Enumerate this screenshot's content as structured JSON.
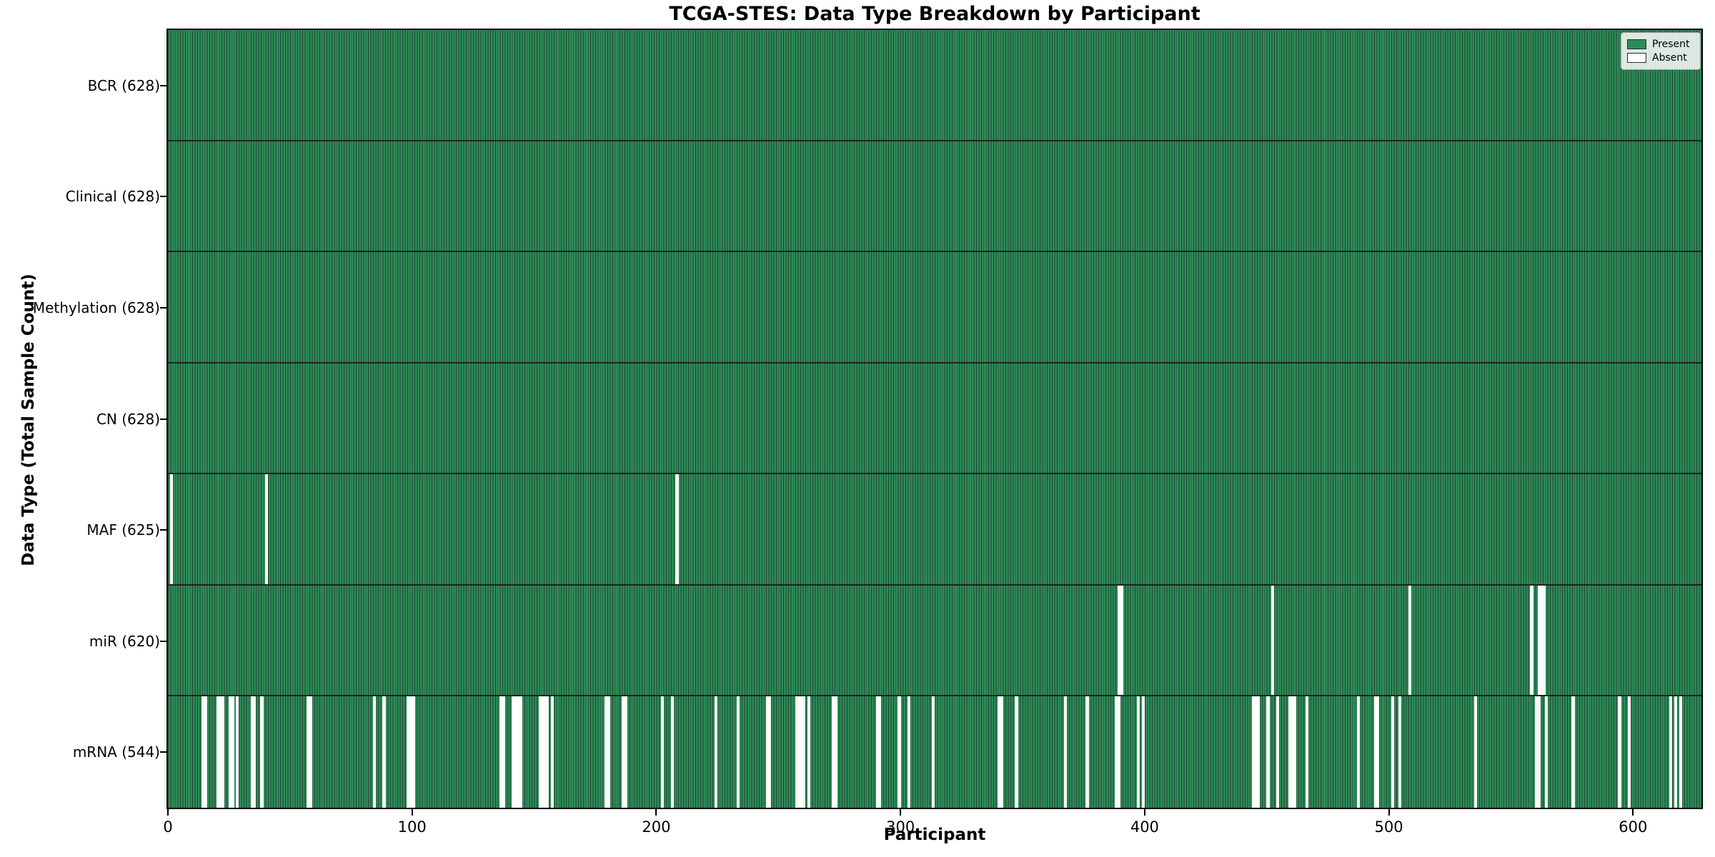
{
  "chart_data": {
    "type": "heatmap",
    "title": "TCGA-STES: Data Type Breakdown by Participant",
    "xlabel": "Participant",
    "ylabel": "Data Type (Total Sample Count)",
    "n_participants": 628,
    "x_ticks": [
      0,
      100,
      200,
      300,
      400,
      500,
      600
    ],
    "legend": [
      {
        "label": "Present",
        "color": "#2e8b57"
      },
      {
        "label": "Absent",
        "color": "#ffffff"
      }
    ],
    "colors": {
      "present": "#2e8b57",
      "bar_edge": "#1e4733",
      "absent": "#fdfdfd",
      "row_divider": "#1c241f",
      "spine": "#000000"
    },
    "rows": [
      {
        "label": "BCR (628)",
        "total": 628,
        "absent": []
      },
      {
        "label": "Clinical (628)",
        "total": 628,
        "absent": []
      },
      {
        "label": "Methylation (628)",
        "total": 628,
        "absent": []
      },
      {
        "label": "CN (628)",
        "total": 628,
        "absent": []
      },
      {
        "label": "MAF (625)",
        "total": 625,
        "absent": [
          1,
          40,
          208
        ]
      },
      {
        "label": "miR (620)",
        "total": 620,
        "absent": [
          389,
          390,
          452,
          508,
          558,
          561,
          562,
          563
        ]
      },
      {
        "label": "mRNA (544)",
        "total": 544,
        "absent": [
          14,
          15,
          20,
          21,
          22,
          25,
          26,
          28,
          34,
          35,
          38,
          57,
          58,
          84,
          88,
          98,
          99,
          100,
          136,
          137,
          141,
          142,
          143,
          144,
          152,
          153,
          154,
          155,
          157,
          179,
          180,
          186,
          187,
          202,
          206,
          224,
          233,
          245,
          246,
          257,
          258,
          259,
          260,
          262,
          272,
          273,
          290,
          291,
          299,
          303,
          313,
          340,
          341,
          347,
          367,
          376,
          388,
          389,
          397,
          399,
          444,
          445,
          446,
          450,
          454,
          459,
          460,
          461,
          466,
          487,
          494,
          495,
          501,
          504,
          535,
          560,
          561,
          564,
          575,
          594,
          598,
          615,
          617,
          619
        ]
      }
    ]
  }
}
